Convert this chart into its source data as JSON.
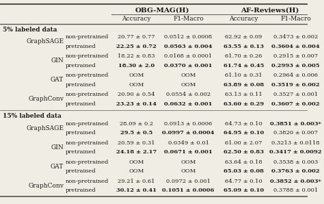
{
  "col_group1": "OBG-MAG(H)",
  "col_group2": "AF-Reviews(H)",
  "col_sub": [
    "Accuracy",
    "F1-Macro",
    "Accuracy",
    "F1-Macro"
  ],
  "sections": [
    {
      "label": "5% labeled data",
      "rows": [
        {
          "model": "GraphSAGE",
          "np": [
            "20.77 ± 0.77",
            "0.0512 ± 0.0008",
            "62.92 ± 0.09",
            "0.3473 ± 0.002"
          ],
          "pt": [
            "22.25 ± 0.72",
            "0.0563 ± 0.004",
            "63.55 ± 0.13",
            "0.3604 ± 0.004"
          ],
          "pt_bold": [
            true,
            true,
            true,
            true
          ],
          "np_bold": [
            false,
            false,
            false,
            false
          ]
        },
        {
          "model": "GIN",
          "np": [
            "18.22 ± 0.83",
            "0.0168 ± 0.0001",
            "61.70 ± 0.26",
            "0.2915 ± 0.007"
          ],
          "pt": [
            "18.30 ± 2.0",
            "0.0370 ± 0.001",
            "61.74 ± 0.45",
            "0.2993 ± 0.005"
          ],
          "pt_bold": [
            true,
            true,
            true,
            true
          ],
          "np_bold": [
            false,
            false,
            false,
            false
          ]
        },
        {
          "model": "GAT",
          "np": [
            "OOM",
            "OOM",
            "61.10 ± 0.31",
            "0.2964 ± 0.006"
          ],
          "pt": [
            "OOM",
            "OOM",
            "63.89 ± 0.08",
            "0.3519 ± 0.002"
          ],
          "pt_bold": [
            false,
            false,
            true,
            true
          ],
          "np_bold": [
            false,
            false,
            false,
            false
          ]
        },
        {
          "model": "GraphConv",
          "np": [
            "20.90 ± 0.54",
            "0.0554 ± 0.002",
            "63.13 ± 0.11",
            "0.3527 ± 0.001"
          ],
          "pt": [
            "23.23 ± 0.14",
            "0.0632 ± 0.001",
            "63.60 ± 0.29",
            "0.3607 ± 0.002"
          ],
          "pt_bold": [
            true,
            true,
            true,
            true
          ],
          "np_bold": [
            false,
            false,
            false,
            false
          ]
        }
      ]
    },
    {
      "label": "15% labeled data",
      "rows": [
        {
          "model": "GraphSAGE",
          "np": [
            "28.09 ± 0.2",
            "0.0913 ± 0.0006",
            "64.73 ± 0.10",
            "0.3851 ± 0.003*"
          ],
          "pt": [
            "29.5 ± 0.5",
            "0.0997 ± 0.0004",
            "64.95 ± 0.10",
            "0.3820 ± 0.007"
          ],
          "pt_bold": [
            true,
            true,
            true,
            false
          ],
          "np_bold": [
            false,
            false,
            false,
            true
          ]
        },
        {
          "model": "GIN",
          "np": [
            "20.59 ± 0.31",
            "0.0349 ± 0.01",
            "61.00 ± 2.07",
            "0.3213 ± 0.0118"
          ],
          "pt": [
            "24.18 ± 2.17",
            "0.0671 ± 0.001",
            "62.50 ± 0.83",
            "0.3417 ± 0.0092"
          ],
          "pt_bold": [
            true,
            true,
            true,
            true
          ],
          "np_bold": [
            false,
            false,
            false,
            false
          ]
        },
        {
          "model": "GAT",
          "np": [
            "OOM",
            "OOM",
            "63.64 ± 0.18",
            "0.3538 ± 0.003"
          ],
          "pt": [
            "OOM",
            "OOM",
            "65.03 ± 0.08",
            "0.3763 ± 0.002"
          ],
          "pt_bold": [
            false,
            false,
            true,
            true
          ],
          "np_bold": [
            false,
            false,
            false,
            false
          ]
        },
        {
          "model": "GraphConv",
          "np": [
            "29.21 ± 0.61",
            "0.0972 ± 0.001",
            "64.77 ± 0.10",
            "0.3852 ± 0.003*"
          ],
          "pt": [
            "30.12 ± 0.41",
            "0.1051 ± 0.0006",
            "65.09 ± 0.10",
            "0.3788 ± 0.001"
          ],
          "pt_bold": [
            true,
            true,
            true,
            false
          ],
          "np_bold": [
            false,
            false,
            false,
            true
          ]
        }
      ]
    }
  ],
  "bg_color": "#f0ede4",
  "text_color": "#1a1a1a",
  "line_color": "#555555",
  "fs": 6.5,
  "fs_header": 7.5
}
